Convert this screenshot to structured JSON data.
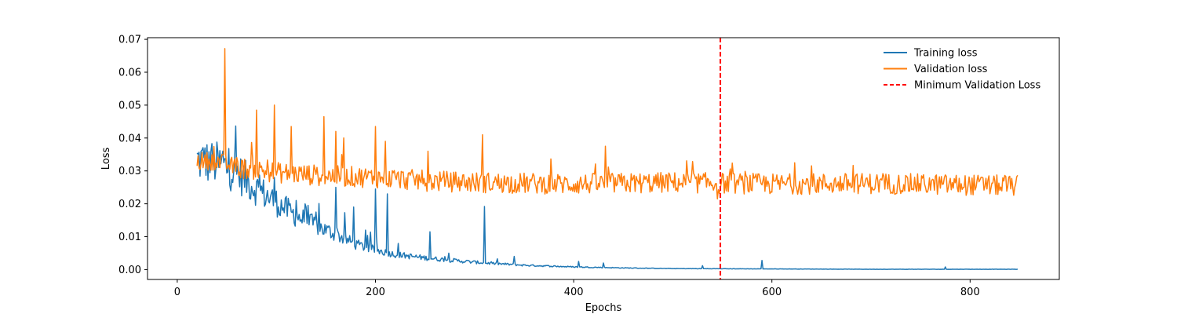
{
  "chart_data": {
    "type": "line",
    "title": "",
    "xlabel": "Epochs",
    "ylabel": "Loss",
    "xlim": [
      -30,
      890
    ],
    "ylim": [
      -0.003,
      0.0705
    ],
    "xticks": [
      0,
      200,
      400,
      600,
      800
    ],
    "yticks": [
      0.0,
      0.01,
      0.02,
      0.03,
      0.04,
      0.05,
      0.06,
      0.07
    ],
    "xtick_labels": [
      "0",
      "200",
      "400",
      "600",
      "800"
    ],
    "ytick_labels": [
      "0.00",
      "0.01",
      "0.02",
      "0.03",
      "0.04",
      "0.05",
      "0.06",
      "0.07"
    ],
    "grid": false,
    "legend_position": "top-right",
    "epoch_range": [
      20,
      848
    ],
    "series": [
      {
        "name": "Training loss",
        "color": "#1f77b4",
        "trend_points": [
          [
            20,
            0.0325
          ],
          [
            40,
            0.0315
          ],
          [
            60,
            0.029
          ],
          [
            80,
            0.024
          ],
          [
            100,
            0.02
          ],
          [
            120,
            0.016
          ],
          [
            140,
            0.013
          ],
          [
            160,
            0.0105
          ],
          [
            180,
            0.0075
          ],
          [
            200,
            0.0058
          ],
          [
            220,
            0.0045
          ],
          [
            240,
            0.0038
          ],
          [
            260,
            0.0032
          ],
          [
            280,
            0.0027
          ],
          [
            300,
            0.0022
          ],
          [
            320,
            0.0018
          ],
          [
            350,
            0.0013
          ],
          [
            400,
            0.0008
          ],
          [
            450,
            0.0005
          ],
          [
            500,
            0.0003
          ],
          [
            600,
            0.0002
          ],
          [
            700,
            0.0001
          ],
          [
            848,
            0.0001
          ]
        ],
        "spikes": [
          [
            28,
            0.037
          ],
          [
            34,
            0.036
          ],
          [
            46,
            0.036
          ],
          [
            98,
            0.028
          ],
          [
            120,
            0.021
          ],
          [
            130,
            0.019
          ],
          [
            140,
            0.0175
          ],
          [
            160,
            0.025
          ],
          [
            178,
            0.019
          ],
          [
            190,
            0.012
          ],
          [
            200,
            0.0245
          ],
          [
            212,
            0.023
          ],
          [
            255,
            0.0115
          ],
          [
            310,
            0.0192
          ],
          [
            340,
            0.004
          ],
          [
            405,
            0.0025
          ],
          [
            430,
            0.002
          ],
          [
            530,
            0.0012
          ],
          [
            590,
            0.0028
          ],
          [
            775,
            0.0008
          ]
        ]
      },
      {
        "name": "Validation loss",
        "color": "#ff7f0e",
        "trend_points": [
          [
            20,
            0.033
          ],
          [
            40,
            0.033
          ],
          [
            60,
            0.031
          ],
          [
            100,
            0.0295
          ],
          [
            150,
            0.0285
          ],
          [
            200,
            0.028
          ],
          [
            250,
            0.027
          ],
          [
            300,
            0.0265
          ],
          [
            400,
            0.026
          ],
          [
            500,
            0.0265
          ],
          [
            600,
            0.026
          ],
          [
            700,
            0.0262
          ],
          [
            848,
            0.0255
          ]
        ],
        "spikes": [
          [
            48,
            0.0672
          ],
          [
            80,
            0.0485
          ],
          [
            98,
            0.05
          ],
          [
            115,
            0.0435
          ],
          [
            148,
            0.0465
          ],
          [
            160,
            0.042
          ],
          [
            168,
            0.04
          ],
          [
            200,
            0.0435
          ],
          [
            210,
            0.039
          ],
          [
            253,
            0.036
          ],
          [
            308,
            0.041
          ],
          [
            432,
            0.0375
          ],
          [
            545,
            0.0215
          ]
        ]
      }
    ],
    "reference_lines": [
      {
        "name": "Minimum Validation Loss",
        "x": 548,
        "color": "#ff0000",
        "style": "dashed"
      }
    ]
  }
}
